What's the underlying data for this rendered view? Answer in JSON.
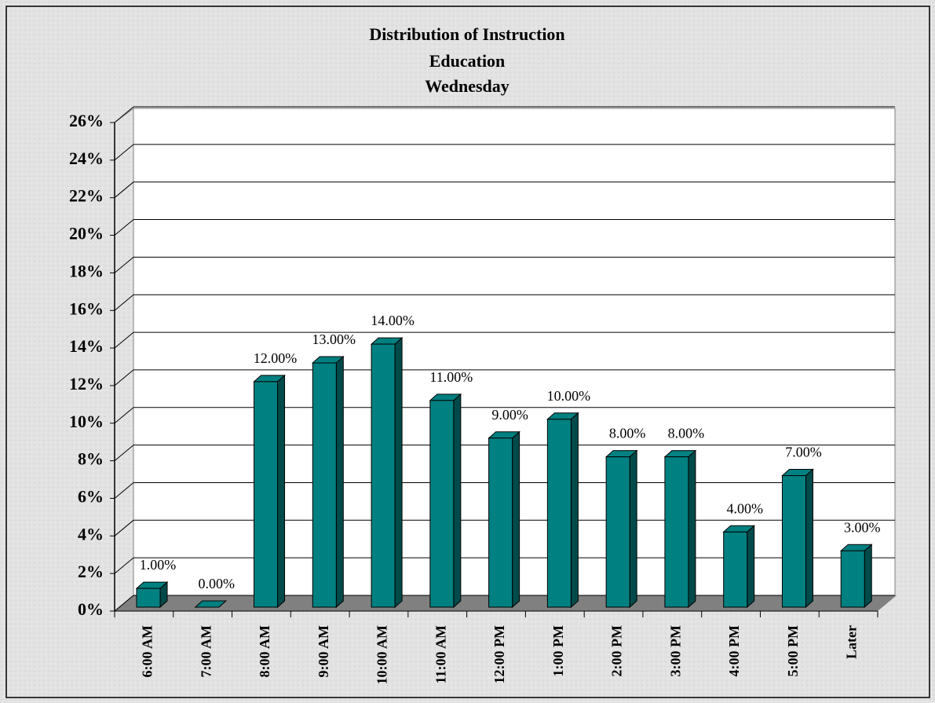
{
  "chart_data": {
    "type": "bar3d",
    "title": [
      "Distribution of Instruction",
      "Education",
      "Wednesday"
    ],
    "categories": [
      "6:00 AM",
      "7:00 AM",
      "8:00 AM",
      "9:00 AM",
      "10:00 AM",
      "11:00 AM",
      "12:00 PM",
      "1:00 PM",
      "2:00 PM",
      "3:00 PM",
      "4:00 PM",
      "5:00 PM",
      "Later"
    ],
    "values": [
      1,
      0,
      12,
      13,
      14,
      11,
      9,
      10,
      8,
      8,
      4,
      7,
      3
    ],
    "value_labels": [
      "1.00%",
      "0.00%",
      "12.00%",
      "13.00%",
      "14.00%",
      "11.00%",
      "9.00%",
      "10.00%",
      "8.00%",
      "8.00%",
      "4.00%",
      "7.00%",
      "3.00%"
    ],
    "color": "#008080",
    "ylim": [
      0,
      26
    ],
    "yticks": [
      {
        "value": 0,
        "label": "0%"
      },
      {
        "value": 2,
        "label": "2%"
      },
      {
        "value": 4,
        "label": "4%"
      },
      {
        "value": 6,
        "label": "6%"
      },
      {
        "value": 8,
        "label": "8%"
      },
      {
        "value": 10,
        "label": "10%"
      },
      {
        "value": 12,
        "label": "12%"
      },
      {
        "value": 14,
        "label": "14%"
      },
      {
        "value": 16,
        "label": "16%"
      },
      {
        "value": 18,
        "label": "18%"
      },
      {
        "value": 20,
        "label": "20%"
      },
      {
        "value": 22,
        "label": "22%"
      },
      {
        "value": 24,
        "label": "24%"
      },
      {
        "value": 26,
        "label": "26%"
      }
    ],
    "grid": true
  }
}
